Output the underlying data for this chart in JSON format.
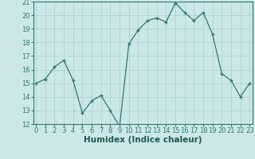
{
  "x": [
    0,
    1,
    2,
    3,
    4,
    5,
    6,
    7,
    8,
    9,
    10,
    11,
    12,
    13,
    14,
    15,
    16,
    17,
    18,
    19,
    20,
    21,
    22,
    23
  ],
  "y": [
    15,
    15.3,
    16.2,
    16.7,
    15.2,
    12.8,
    13.7,
    14.1,
    13.0,
    11.8,
    17.9,
    18.9,
    19.6,
    19.8,
    19.5,
    20.9,
    20.2,
    19.6,
    20.2,
    18.6,
    15.7,
    15.2,
    14.0,
    15.0
  ],
  "xlabel": "Humidex (Indice chaleur)",
  "ylim": [
    12,
    21
  ],
  "xlim": [
    -0.3,
    23.3
  ],
  "yticks": [
    12,
    13,
    14,
    15,
    16,
    17,
    18,
    19,
    20,
    21
  ],
  "xticks": [
    0,
    1,
    2,
    3,
    4,
    5,
    6,
    7,
    8,
    9,
    10,
    11,
    12,
    13,
    14,
    15,
    16,
    17,
    18,
    19,
    20,
    21,
    22,
    23
  ],
  "line_color": "#2d7a6e",
  "marker_color": "#2d7a6e",
  "bg_color": "#cce8e4",
  "grid_color": "#aad4ce",
  "xlabel_fontsize": 7.5,
  "tick_fontsize": 6.0
}
